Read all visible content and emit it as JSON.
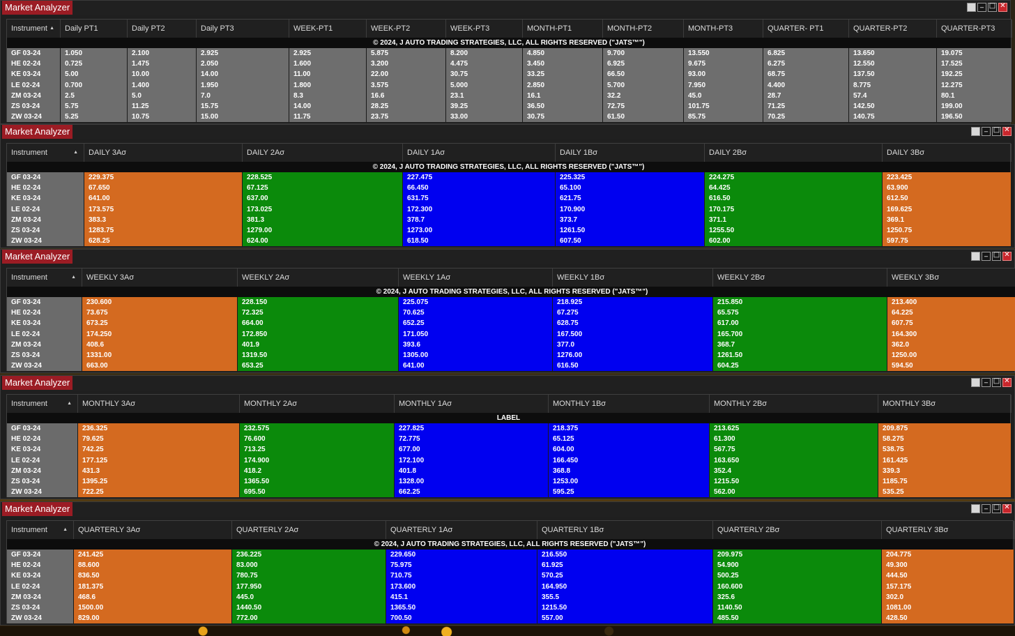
{
  "app_title": "Market Analyzer",
  "instruments": [
    "GF 03-24",
    "HE 02-24",
    "KE 03-24",
    "LE 02-24",
    "ZM 03-24",
    "ZS 03-24",
    "ZW 03-24"
  ],
  "colors": {
    "orange": "#d46a20",
    "green": "#0b8a0b",
    "blue": "#0000f0",
    "gray": "#6e6e6e",
    "title_bg": "#9b1c24"
  },
  "windows": [
    {
      "title": "Market Analyzer",
      "banner": "© 2024, J AUTO TRADING STRATEGIES, LLC, ALL RIGHTS RESERVED (\"JATS™\")",
      "instrument_header": "Instrument",
      "columns": [
        {
          "header": "Daily PT1",
          "color": "gray",
          "values": [
            "1.050",
            "0.725",
            "5.00",
            "0.700",
            "2.5",
            "5.75",
            "5.25"
          ]
        },
        {
          "header": "Daily PT2",
          "color": "gray",
          "values": [
            "2.100",
            "1.475",
            "10.00",
            "1.400",
            "5.0",
            "11.25",
            "10.75"
          ]
        },
        {
          "header": "Daily PT3",
          "color": "gray",
          "values": [
            "2.925",
            "2.050",
            "14.00",
            "1.950",
            "7.0",
            "15.75",
            "15.00"
          ]
        },
        {
          "header": "WEEK-PT1",
          "color": "gray",
          "values": [
            "2.925",
            "1.600",
            "11.00",
            "1.800",
            "8.3",
            "14.00",
            "11.75"
          ]
        },
        {
          "header": "WEEK-PT2",
          "color": "gray",
          "values": [
            "5.875",
            "3.200",
            "22.00",
            "3.575",
            "16.6",
            "28.25",
            "23.75"
          ]
        },
        {
          "header": "WEEK-PT3",
          "color": "gray",
          "values": [
            "8.200",
            "4.475",
            "30.75",
            "5.000",
            "23.1",
            "39.25",
            "33.00"
          ]
        },
        {
          "header": "MONTH-PT1",
          "color": "gray",
          "values": [
            "4.850",
            "3.450",
            "33.25",
            "2.850",
            "16.1",
            "36.50",
            "30.75"
          ]
        },
        {
          "header": "MONTH-PT2",
          "color": "gray",
          "values": [
            "9.700",
            "6.925",
            "66.50",
            "5.700",
            "32.2",
            "72.75",
            "61.50"
          ]
        },
        {
          "header": "MONTH-PT3",
          "color": "gray",
          "values": [
            "13.550",
            "9.675",
            "93.00",
            "7.950",
            "45.0",
            "101.75",
            "85.75"
          ]
        },
        {
          "header": "QUARTER- PT1",
          "color": "gray",
          "values": [
            "6.825",
            "6.275",
            "68.75",
            "4.400",
            "28.7",
            "71.25",
            "70.25"
          ]
        },
        {
          "header": "QUARTER-PT2",
          "color": "gray",
          "values": [
            "13.650",
            "12.550",
            "137.50",
            "8.775",
            "57.4",
            "142.50",
            "140.75"
          ]
        },
        {
          "header": "QUARTER-PT3",
          "color": "gray",
          "values": [
            "19.075",
            "17.525",
            "192.25",
            "12.275",
            "80.1",
            "199.00",
            "196.50"
          ]
        }
      ]
    },
    {
      "title": "Market Analyzer",
      "banner": "© 2024, J AUTO TRADING STRATEGIES, LLC, ALL RIGHTS RESERVED (\"JATS™\")",
      "instrument_header": "Instrument",
      "columns": [
        {
          "header": "DAILY 3Aσ",
          "color": "orange",
          "values": [
            "229.375",
            "67.650",
            "641.00",
            "173.575",
            "383.3",
            "1283.75",
            "628.25"
          ]
        },
        {
          "header": "DAILY 2Aσ",
          "color": "green",
          "values": [
            "228.525",
            "67.125",
            "637.00",
            "173.025",
            "381.3",
            "1279.00",
            "624.00"
          ]
        },
        {
          "header": "DAILY 1Aσ",
          "color": "blue",
          "values": [
            "227.475",
            "66.450",
            "631.75",
            "172.300",
            "378.7",
            "1273.00",
            "618.50"
          ]
        },
        {
          "header": "DAILY 1Bσ",
          "color": "blue",
          "values": [
            "225.325",
            "65.100",
            "621.75",
            "170.900",
            "373.7",
            "1261.50",
            "607.50"
          ]
        },
        {
          "header": "DAILY 2Bσ",
          "color": "green",
          "values": [
            "224.275",
            "64.425",
            "616.50",
            "170.175",
            "371.1",
            "1255.50",
            "602.00"
          ]
        },
        {
          "header": "DAILY 3Bσ",
          "color": "orange",
          "values": [
            "223.425",
            "63.900",
            "612.50",
            "169.625",
            "369.1",
            "1250.75",
            "597.75"
          ]
        }
      ]
    },
    {
      "title": "Market Analyzer",
      "banner": "© 2024, J AUTO TRADING STRATEGIES, LLC, ALL RIGHTS RESERVED (\"JATS™\")",
      "instrument_header": "Instrument",
      "columns": [
        {
          "header": "WEEKLY 3Aσ",
          "color": "orange",
          "values": [
            "230.600",
            "73.675",
            "673.25",
            "174.250",
            "408.6",
            "1331.00",
            "663.00"
          ]
        },
        {
          "header": "WEEKLY 2Aσ",
          "color": "green",
          "values": [
            "228.150",
            "72.325",
            "664.00",
            "172.850",
            "401.9",
            "1319.50",
            "653.25"
          ]
        },
        {
          "header": "WEEKLY 1Aσ",
          "color": "blue",
          "values": [
            "225.075",
            "70.625",
            "652.25",
            "171.050",
            "393.6",
            "1305.00",
            "641.00"
          ]
        },
        {
          "header": "WEEKLY 1Bσ",
          "color": "blue",
          "values": [
            "218.925",
            "67.275",
            "628.75",
            "167.500",
            "377.0",
            "1276.00",
            "616.50"
          ]
        },
        {
          "header": "WEEKLY 2Bσ",
          "color": "green",
          "values": [
            "215.850",
            "65.575",
            "617.00",
            "165.700",
            "368.7",
            "1261.50",
            "604.25"
          ]
        },
        {
          "header": "WEEKLY 3Bσ",
          "color": "orange",
          "values": [
            "213.400",
            "64.225",
            "607.75",
            "164.300",
            "362.0",
            "1250.00",
            "594.50"
          ]
        }
      ]
    },
    {
      "title": "Market Analyzer",
      "banner": "LABEL",
      "instrument_header": "Instrument",
      "columns": [
        {
          "header": "MONTHLY 3Aσ",
          "color": "orange",
          "values": [
            "236.325",
            "79.625",
            "742.25",
            "177.125",
            "431.3",
            "1395.25",
            "722.25"
          ]
        },
        {
          "header": "MONTHLY 2Aσ",
          "color": "green",
          "values": [
            "232.575",
            "76.600",
            "713.25",
            "174.900",
            "418.2",
            "1365.50",
            "695.50"
          ]
        },
        {
          "header": "MONTHLY 1Aσ",
          "color": "blue",
          "values": [
            "227.825",
            "72.775",
            "677.00",
            "172.100",
            "401.8",
            "1328.00",
            "662.25"
          ]
        },
        {
          "header": "MONTHLY 1Bσ",
          "color": "blue",
          "values": [
            "218.375",
            "65.125",
            "604.00",
            "166.450",
            "368.8",
            "1253.00",
            "595.25"
          ]
        },
        {
          "header": "MONTHLY 2Bσ",
          "color": "green",
          "values": [
            "213.625",
            "61.300",
            "567.75",
            "163.650",
            "352.4",
            "1215.50",
            "562.00"
          ]
        },
        {
          "header": "MONTHLY 3Bσ",
          "color": "orange",
          "values": [
            "209.875",
            "58.275",
            "538.75",
            "161.425",
            "339.3",
            "1185.75",
            "535.25"
          ]
        }
      ]
    },
    {
      "title": "Market Analyzer",
      "banner": "© 2024, J AUTO TRADING STRATEGIES, LLC, ALL RIGHTS RESERVED (\"JATS™\")",
      "instrument_header": "Instrument",
      "columns": [
        {
          "header": "QUARTERLY 3Aσ",
          "color": "orange",
          "values": [
            "241.425",
            "88.600",
            "836.50",
            "181.375",
            "468.6",
            "1500.00",
            "829.00"
          ]
        },
        {
          "header": "QUARTERLY 2Aσ",
          "color": "green",
          "values": [
            "236.225",
            "83.000",
            "780.75",
            "177.950",
            "445.0",
            "1440.50",
            "772.00"
          ]
        },
        {
          "header": "QUARTERLY 1Aσ",
          "color": "blue",
          "values": [
            "229.650",
            "75.975",
            "710.75",
            "173.600",
            "415.1",
            "1365.50",
            "700.50"
          ]
        },
        {
          "header": "QUARTERLY 1Bσ",
          "color": "blue",
          "values": [
            "216.550",
            "61.925",
            "570.25",
            "164.950",
            "355.5",
            "1215.50",
            "557.00"
          ]
        },
        {
          "header": "QUARTERLY 2Bσ",
          "color": "green",
          "values": [
            "209.975",
            "54.900",
            "500.25",
            "160.600",
            "325.6",
            "1140.50",
            "485.50"
          ]
        },
        {
          "header": "QUARTERLY 3Bσ",
          "color": "orange",
          "values": [
            "204.775",
            "49.300",
            "444.50",
            "157.175",
            "302.0",
            "1081.00",
            "428.50"
          ]
        }
      ]
    }
  ]
}
